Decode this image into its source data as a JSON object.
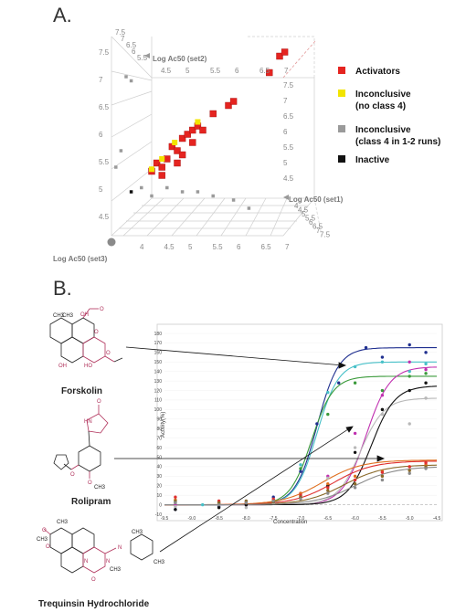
{
  "panelA": {
    "label": "A.",
    "axes": {
      "set1": "Log Ac50 (set1)",
      "set2": "Log Ac50 (set2)",
      "set3": "Log Ac50 (set3)"
    },
    "axis3_ticks": [
      "4",
      "4.5",
      "5",
      "5.5",
      "6",
      "6.5",
      "7"
    ],
    "left_ticks": [
      "4.5",
      "5",
      "5.5",
      "6",
      "6.5",
      "7",
      "7.5"
    ],
    "right_ticks": [
      "4.5",
      "5",
      "5.5",
      "6",
      "6.5",
      "7",
      "7.5"
    ],
    "top_ticks": [
      "4.5",
      "5",
      "5.5",
      "6",
      "6.5",
      "7"
    ],
    "set1_ticks": [
      "4",
      "4.5",
      "5",
      "5.5",
      "6",
      "6.5",
      "7",
      "7.5"
    ],
    "corner_ticks": [
      "7.5",
      "7",
      "6.5",
      "6",
      "5.5"
    ],
    "legend": [
      {
        "label": "Activators",
        "color": "#e52420"
      },
      {
        "label": "Inconclusive\n(no class 4)",
        "color": "#f2e400"
      },
      {
        "label": "Inconclusive\n(class 4 in 1-2 runs)",
        "color": "#9a9a9a"
      },
      {
        "label": "Inactive",
        "color": "#111111"
      }
    ]
  },
  "panelB": {
    "label": "B.",
    "compounds": [
      {
        "name": "Forskolin",
        "atoms": [
          "CH3",
          "CH3",
          "OH",
          "O",
          "O",
          "OH",
          "O",
          "HO"
        ]
      },
      {
        "name": "Rolipram",
        "atoms": [
          "HN",
          "O",
          "O",
          "O",
          "CH3"
        ]
      },
      {
        "name": "Trequinsin Hydrochloride",
        "atoms": [
          "CH3",
          "O",
          "CH3",
          "O",
          "N",
          "N",
          "N",
          "CH3",
          "O",
          "CH3",
          "CH3"
        ]
      }
    ]
  },
  "chart_data": {
    "type": "scatter",
    "title": "",
    "xlabel": "Concentration",
    "ylabel": "Activity(%)",
    "xlim": [
      -9.5,
      -4.5
    ],
    "ylim": [
      -10,
      180
    ],
    "xticks": [
      "-9.5",
      "-9.0",
      "-8.5",
      "-8.0",
      "-7.5",
      "-7.0",
      "-6.5",
      "-6.0",
      "-5.5",
      "-5.0",
      "-4.5"
    ],
    "yticks": [
      "-10",
      "0",
      "10",
      "20",
      "30",
      "40",
      "50",
      "60",
      "70",
      "80",
      "90",
      "100",
      "110",
      "120",
      "130",
      "140",
      "150",
      "160",
      "170",
      "180"
    ],
    "reference_lines": [
      {
        "axis": "y",
        "value": 0,
        "style": "dashed"
      }
    ],
    "series": [
      {
        "color": "#1f2f8f",
        "curve": {
          "bottom": 0,
          "top": 165,
          "ac50": -6.7,
          "hill": 2.2
        },
        "points": [
          [
            -9.3,
            -5
          ],
          [
            -8.5,
            -2
          ],
          [
            -8.0,
            0
          ],
          [
            -7.5,
            8
          ],
          [
            -7.0,
            35
          ],
          [
            -6.7,
            85
          ],
          [
            -6.3,
            128
          ],
          [
            -5.8,
            165
          ],
          [
            -5.5,
            155
          ],
          [
            -5.0,
            168
          ],
          [
            -4.7,
            160
          ]
        ]
      },
      {
        "color": "#47c0c8",
        "curve": {
          "bottom": 0,
          "top": 150,
          "ac50": -6.7,
          "hill": 2.2
        },
        "points": [
          [
            -9.3,
            3
          ],
          [
            -8.8,
            0
          ],
          [
            -8.0,
            2
          ],
          [
            -7.5,
            5
          ],
          [
            -7.0,
            42
          ],
          [
            -6.5,
            118
          ],
          [
            -6.0,
            145
          ],
          [
            -5.5,
            150
          ],
          [
            -5.0,
            140
          ],
          [
            -4.7,
            148
          ]
        ]
      },
      {
        "color": "#3a9a3a",
        "curve": {
          "bottom": 0,
          "top": 135,
          "ac50": -6.8,
          "hill": 2.2
        },
        "points": [
          [
            -9.3,
            2
          ],
          [
            -8.5,
            1
          ],
          [
            -8.0,
            0
          ],
          [
            -7.5,
            5
          ],
          [
            -7.0,
            38
          ],
          [
            -6.5,
            95
          ],
          [
            -6.0,
            128
          ],
          [
            -5.5,
            120
          ],
          [
            -5.0,
            135
          ],
          [
            -4.7,
            138
          ]
        ]
      },
      {
        "color": "#c030b0",
        "curve": {
          "bottom": 0,
          "top": 145,
          "ac50": -5.8,
          "hill": 2.0
        },
        "points": [
          [
            -9.3,
            0
          ],
          [
            -8.5,
            2
          ],
          [
            -8.0,
            0
          ],
          [
            -7.5,
            5
          ],
          [
            -7.0,
            12
          ],
          [
            -6.5,
            30
          ],
          [
            -6.0,
            75
          ],
          [
            -5.5,
            115
          ],
          [
            -5.0,
            150
          ],
          [
            -4.7,
            142
          ]
        ]
      },
      {
        "color": "#b8b8b8",
        "curve": {
          "bottom": 0,
          "top": 112,
          "ac50": -5.9,
          "hill": 2.0
        },
        "points": [
          [
            -9.3,
            -2
          ],
          [
            -8.5,
            0
          ],
          [
            -8.0,
            -3
          ],
          [
            -7.5,
            2
          ],
          [
            -7.0,
            10
          ],
          [
            -6.5,
            28
          ],
          [
            -6.0,
            60
          ],
          [
            -5.5,
            95
          ],
          [
            -5.0,
            85
          ],
          [
            -4.7,
            112
          ]
        ]
      },
      {
        "color": "#111111",
        "curve": {
          "bottom": 0,
          "top": 125,
          "ac50": -5.7,
          "hill": 2.0
        },
        "points": [
          [
            -9.3,
            -5
          ],
          [
            -8.5,
            -3
          ],
          [
            -8.0,
            0
          ],
          [
            -7.5,
            3
          ],
          [
            -7.0,
            8
          ],
          [
            -6.5,
            20
          ],
          [
            -6.0,
            55
          ],
          [
            -5.5,
            100
          ],
          [
            -5.0,
            120
          ],
          [
            -4.7,
            128
          ]
        ]
      },
      {
        "color": "#e07020",
        "curve": {
          "bottom": 0,
          "top": 47,
          "ac50": -6.6,
          "hill": 1.2
        },
        "points": [
          [
            -9.3,
            5
          ],
          [
            -8.5,
            3
          ],
          [
            -8.0,
            2
          ],
          [
            -7.5,
            5
          ],
          [
            -7.0,
            12
          ],
          [
            -6.5,
            22
          ],
          [
            -6.0,
            30
          ],
          [
            -5.5,
            35
          ],
          [
            -5.0,
            40
          ],
          [
            -4.7,
            42
          ]
        ]
      },
      {
        "color": "#e03030",
        "curve": {
          "bottom": 0,
          "top": 46,
          "ac50": -6.4,
          "hill": 1.2
        },
        "points": [
          [
            -9.3,
            8
          ],
          [
            -8.5,
            4
          ],
          [
            -8.0,
            3
          ],
          [
            -7.5,
            6
          ],
          [
            -7.0,
            10
          ],
          [
            -6.5,
            18
          ],
          [
            -6.0,
            26
          ],
          [
            -5.5,
            34
          ],
          [
            -5.0,
            40
          ],
          [
            -4.7,
            44
          ]
        ]
      },
      {
        "color": "#8a6a2a",
        "curve": {
          "bottom": 0,
          "top": 42,
          "ac50": -6.2,
          "hill": 1.2
        },
        "points": [
          [
            -9.3,
            4
          ],
          [
            -8.5,
            2
          ],
          [
            -8.0,
            4
          ],
          [
            -7.5,
            3
          ],
          [
            -7.0,
            8
          ],
          [
            -6.5,
            15
          ],
          [
            -6.0,
            22
          ],
          [
            -5.5,
            30
          ],
          [
            -5.0,
            36
          ],
          [
            -4.7,
            40
          ]
        ]
      },
      {
        "color": "#8a8a8a",
        "curve": {
          "bottom": 0,
          "top": 40,
          "ac50": -6.0,
          "hill": 1.2
        },
        "points": [
          [
            -9.3,
            2
          ],
          [
            -8.5,
            0
          ],
          [
            -8.0,
            2
          ],
          [
            -7.5,
            4
          ],
          [
            -7.0,
            6
          ],
          [
            -6.5,
            12
          ],
          [
            -6.0,
            18
          ],
          [
            -5.5,
            26
          ],
          [
            -5.0,
            33
          ],
          [
            -4.7,
            38
          ]
        ]
      }
    ]
  },
  "scatter3d_points": [
    {
      "cls": "act",
      "x": 5.0,
      "y": 5.0
    },
    {
      "cls": "act",
      "x": 5.1,
      "y": 5.2
    },
    {
      "cls": "act",
      "x": 5.2,
      "y": 5.1
    },
    {
      "cls": "act",
      "x": 5.3,
      "y": 5.3
    },
    {
      "cls": "act",
      "x": 5.4,
      "y": 5.6
    },
    {
      "cls": "act",
      "x": 5.5,
      "y": 5.5
    },
    {
      "cls": "act",
      "x": 5.6,
      "y": 5.8
    },
    {
      "cls": "act",
      "x": 5.7,
      "y": 5.9
    },
    {
      "cls": "act",
      "x": 5.8,
      "y": 6.0
    },
    {
      "cls": "act",
      "x": 5.6,
      "y": 5.4
    },
    {
      "cls": "act",
      "x": 5.9,
      "y": 6.1
    },
    {
      "cls": "act",
      "x": 6.2,
      "y": 6.4
    },
    {
      "cls": "act",
      "x": 6.5,
      "y": 6.6
    },
    {
      "cls": "act",
      "x": 6.6,
      "y": 6.7
    },
    {
      "cls": "act",
      "x": 5.2,
      "y": 4.9
    },
    {
      "cls": "act",
      "x": 5.5,
      "y": 5.2
    },
    {
      "cls": "act",
      "x": 5.8,
      "y": 5.7
    },
    {
      "cls": "act",
      "x": 6.0,
      "y": 6.0
    },
    {
      "cls": "act",
      "x": 7.3,
      "y": 7.4
    },
    {
      "cls": "act",
      "x": 7.5,
      "y": 7.8
    },
    {
      "cls": "act",
      "x": 7.6,
      "y": 7.9
    },
    {
      "cls": "inc",
      "x": 5.0,
      "y": 5.05
    },
    {
      "cls": "inc",
      "x": 5.2,
      "y": 5.3
    },
    {
      "cls": "inc",
      "x": 5.9,
      "y": 6.2
    },
    {
      "cls": "inc",
      "x": 5.45,
      "y": 5.7
    },
    {
      "cls": "c4",
      "x": 4.3,
      "y": 5.1
    },
    {
      "cls": "c4",
      "x": 4.4,
      "y": 5.5
    },
    {
      "cls": "c4",
      "x": 4.8,
      "y": 4.6
    },
    {
      "cls": "c4",
      "x": 5.3,
      "y": 4.6
    },
    {
      "cls": "c4",
      "x": 5.6,
      "y": 4.5
    },
    {
      "cls": "c4",
      "x": 6.2,
      "y": 4.4
    },
    {
      "cls": "c4",
      "x": 6.6,
      "y": 4.3
    },
    {
      "cls": "c4",
      "x": 5.0,
      "y": 4.4
    },
    {
      "cls": "c4",
      "x": 4.5,
      "y": 7.3
    },
    {
      "cls": "c4",
      "x": 4.6,
      "y": 7.2
    },
    {
      "cls": "c4",
      "x": 6.9,
      "y": 4.1
    },
    {
      "cls": "c4",
      "x": 5.9,
      "y": 4.5
    },
    {
      "cls": "in",
      "x": 4.6,
      "y": 4.5
    }
  ]
}
